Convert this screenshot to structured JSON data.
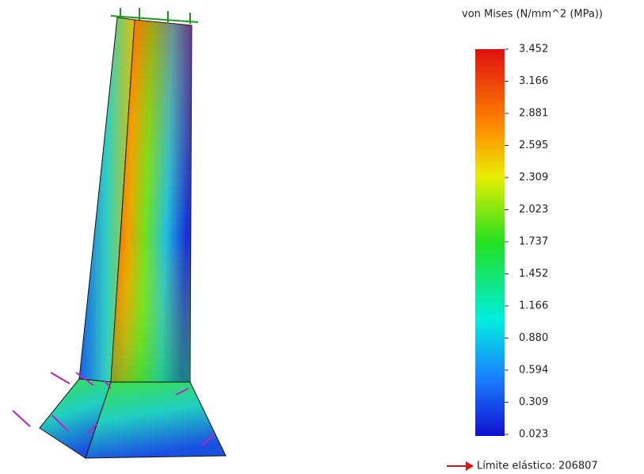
{
  "legend": {
    "title": "von Mises (N/mm^2 (MPa))",
    "ticks": [
      "3.452",
      "3.166",
      "2.881",
      "2.595",
      "2.309",
      "2.023",
      "1.737",
      "1.452",
      "1.166",
      "0.880",
      "0.594",
      "0.309",
      "0.023"
    ]
  },
  "yield_limit": "Límite elástico: 206807"
}
